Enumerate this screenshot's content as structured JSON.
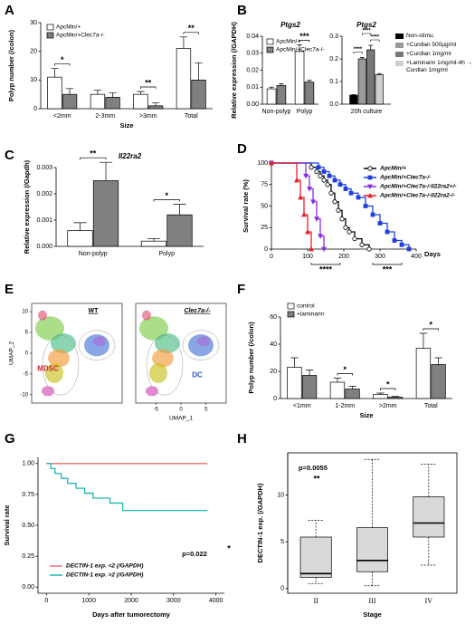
{
  "chart_data": [
    {
      "type": "bar",
      "panel": "A",
      "ylabel": "Polyp number (/colon)",
      "xlabel": "Size",
      "categories": [
        "<2mm",
        "2-3mm",
        ">3mm",
        "Total"
      ],
      "series": [
        {
          "name": "ApcMin/+",
          "color": "#ffffff",
          "values": [
            11,
            5,
            5,
            21
          ],
          "errors": [
            3,
            1.5,
            1,
            4
          ]
        },
        {
          "name": "ApcMin/+Clec7a-/-",
          "color": "#808080",
          "values": [
            5,
            4,
            1,
            10
          ],
          "errors": [
            2,
            1.5,
            1,
            6
          ]
        }
      ],
      "significance": [
        "*",
        null,
        "**",
        "**"
      ],
      "ylim": [
        0,
        30
      ],
      "yticks": [
        0,
        10,
        20,
        30
      ]
    },
    {
      "type": "bar",
      "panel": "B",
      "title": "Ptgs2",
      "ylabel": "Relative expression (/GAPDH)",
      "categories": [
        "Non-polyp",
        "Polyp"
      ],
      "series": [
        {
          "name": "ApcMin/+",
          "color": "#ffffff",
          "values": [
            0.009,
            0.031
          ],
          "errors": [
            0.001,
            0.004
          ]
        },
        {
          "name": "ApcMin/+Clec7a-/-",
          "color": "#808080",
          "values": [
            0.011,
            0.013
          ],
          "errors": [
            0.001,
            0.001
          ]
        }
      ],
      "significance": [
        null,
        "***"
      ],
      "ylim": [
        0,
        0.04
      ],
      "yticks": [
        {
          "value": 0,
          "label": "0.00"
        },
        {
          "value": 0.01,
          "label": "0.01"
        },
        {
          "value": 0.02,
          "label": "0.02"
        },
        {
          "value": 0.03,
          "label": "0.03"
        },
        {
          "value": 0.04,
          "label": "0.04"
        }
      ]
    },
    {
      "type": "bar",
      "title": "Ptgs2",
      "categories": [
        "20h culture"
      ],
      "series": [
        {
          "name": "Non-stimu.",
          "color": "#000000",
          "values": [
            0.04
          ],
          "errors": [
            0.002
          ]
        },
        {
          "name": "+Curdlan 500μg/ml",
          "color": "#9a9a9a",
          "values": [
            0.2
          ],
          "errors": [
            0.006
          ]
        },
        {
          "name": "+Curdlan 1mg/ml",
          "color": "#777777",
          "values": [
            0.24
          ],
          "errors": [
            0.02
          ]
        },
        {
          "name": "+Laminarin 1mg/ml-4h → Curdlan 1mg/ml",
          "color": "#cfcfcf",
          "values": [
            0.13
          ],
          "errors": [
            0.005
          ]
        }
      ],
      "pairwise": [
        "****",
        "****",
        "****"
      ],
      "ylim": [
        0,
        0.3
      ],
      "yticks": [
        {
          "value": 0,
          "label": "0.0"
        },
        {
          "value": 0.1,
          "label": "0.1"
        },
        {
          "value": 0.2,
          "label": "0.2"
        },
        {
          "value": 0.3,
          "label": "0.3"
        }
      ]
    },
    {
      "type": "bar",
      "panel": "C",
      "title": "Il22ra2",
      "ylabel": "Relative expression (/Gapdh)",
      "categories": [
        "Non-polyp",
        "Polyp"
      ],
      "series": [
        {
          "color": "#ffffff",
          "values": [
            0.0006,
            0.0002
          ],
          "errors": [
            0.0003,
            0.0001
          ]
        },
        {
          "color": "#808080",
          "values": [
            0.0025,
            0.0012
          ],
          "errors": [
            0.0007,
            0.0004
          ]
        }
      ],
      "significance": [
        "**",
        "*"
      ],
      "ylim": [
        0,
        0.003
      ],
      "yticks": [
        {
          "value": 0,
          "label": "0.000"
        },
        {
          "value": 0.001,
          "label": "0.001"
        },
        {
          "value": 0.002,
          "label": "0.002"
        },
        {
          "value": 0.003,
          "label": "0.003"
        }
      ]
    },
    {
      "type": "step",
      "panel": "D",
      "ylabel": "Survival rate (%)",
      "xlabel": "Days",
      "series": [
        {
          "name": "ApcMin/+",
          "color": "#000000",
          "marker": "o",
          "x": [
            0,
            110,
            125,
            135,
            145,
            155,
            165,
            175,
            185,
            195,
            205,
            215,
            230,
            250,
            270
          ],
          "values": [
            100,
            95,
            90,
            85,
            80,
            75,
            65,
            55,
            45,
            35,
            25,
            20,
            12,
            5,
            0
          ]
        },
        {
          "name": "ApcMin/+Clec7a-/-",
          "color": "#1f3fdf",
          "marker": "s",
          "x": [
            0,
            130,
            145,
            160,
            175,
            190,
            205,
            220,
            240,
            260,
            280,
            300,
            320,
            340,
            360,
            380
          ],
          "values": [
            100,
            95,
            90,
            85,
            80,
            75,
            70,
            65,
            60,
            50,
            40,
            30,
            20,
            10,
            5,
            0
          ]
        },
        {
          "name": "ApcMin/+Clec7a-/-Il22ra2+/-",
          "color": "#8a2be2",
          "marker": "v",
          "x": [
            0,
            95,
            105,
            115,
            125,
            135,
            145
          ],
          "values": [
            100,
            85,
            70,
            55,
            35,
            15,
            0
          ]
        },
        {
          "name": "ApcMin/+Clec7a-/-Il22ra2-/-",
          "color": "#e8212a",
          "marker": "^",
          "x": [
            0,
            70,
            80,
            90,
            100,
            110
          ],
          "values": [
            100,
            80,
            60,
            40,
            20,
            0
          ]
        }
      ],
      "annotations": [
        "****",
        "***"
      ],
      "xlim": [
        0,
        400
      ],
      "xticks": [
        0,
        100,
        200,
        300,
        400
      ],
      "ylim": [
        0,
        100
      ],
      "yticks": [
        0,
        25,
        50,
        75,
        100
      ]
    },
    {
      "type": "umap",
      "panel": "E",
      "xlabel": "UMAP_1",
      "ylabel": "UMAP_2",
      "titles": [
        "WT",
        "Clec7a-/-"
      ],
      "labels": [
        "MDSC",
        "DC"
      ],
      "xlim": [
        -9,
        9
      ],
      "ylim": [
        -12,
        12
      ],
      "xticks": [
        -5,
        0,
        5
      ],
      "yticks": [
        -10,
        -5,
        0,
        5,
        10
      ]
    },
    {
      "type": "bar",
      "panel": "F",
      "ylabel": "Polyp number (/colon)",
      "xlabel": "Size",
      "categories": [
        "<1mm",
        "1-2mm",
        ">2mm",
        "Total"
      ],
      "series": [
        {
          "name": "control",
          "color": "#ffffff",
          "values": [
            23,
            12,
            3,
            37
          ],
          "errors": [
            7,
            3,
            1,
            11
          ]
        },
        {
          "name": "+laminarin",
          "color": "#808080",
          "values": [
            17,
            7,
            1,
            25
          ],
          "errors": [
            4,
            2,
            0.5,
            5
          ]
        }
      ],
      "significance": [
        null,
        "*",
        "*",
        "*"
      ],
      "ylim": [
        0,
        60
      ],
      "yticks": [
        0,
        20,
        40,
        60
      ]
    },
    {
      "type": "step",
      "panel": "G",
      "ylabel": "Survival rate",
      "xlabel": "Days after tumorectomy",
      "series": [
        {
          "name": "DECTIN-1 exp. <2 (/GAPDH)",
          "color": "#f26b6b",
          "x": [
            0,
            3800
          ],
          "values": [
            1,
            1
          ]
        },
        {
          "name": "DECTIN-1 exp. >2 (/GAPDH)",
          "color": "#1fb5b0",
          "x": [
            0,
            100,
            200,
            350,
            500,
            700,
            900,
            1100,
            1500,
            1800,
            3800
          ],
          "values": [
            1,
            0.96,
            0.92,
            0.88,
            0.84,
            0.8,
            0.76,
            0.72,
            0.68,
            0.62,
            0.62
          ]
        }
      ],
      "annotations": [
        "p=0.022",
        "*"
      ],
      "xlim": [
        -200,
        4200
      ],
      "xticks": [
        0,
        1000,
        2000,
        3000,
        4000
      ],
      "ylim": [
        -0.05,
        1.05
      ],
      "yticks": [
        {
          "value": 0,
          "label": "0.00"
        },
        {
          "value": 0.25,
          "label": "0.25"
        },
        {
          "value": 0.5,
          "label": "0.50"
        },
        {
          "value": 0.75,
          "label": "0.75"
        },
        {
          "value": 1,
          "label": "1.00"
        }
      ]
    },
    {
      "type": "box",
      "panel": "H",
      "ylabel": "DECTIN-1 exp. (/GAPDH)",
      "xlabel": "Stage",
      "categories": [
        "II",
        "III",
        "IV"
      ],
      "boxes": [
        {
          "min": 0.5,
          "q1": 1.2,
          "median": 1.6,
          "q3": 5.5,
          "max": 7.3
        },
        {
          "min": 0.3,
          "q1": 1.8,
          "median": 3,
          "q3": 6.5,
          "max": 13.8
        },
        {
          "min": 2.5,
          "q1": 5.5,
          "median": 7,
          "q3": 9.8,
          "max": 13.3
        }
      ],
      "color": "#d9d9d9",
      "annotations": [
        "p=0.0055",
        "**"
      ],
      "ylim": [
        -0.5,
        14.5
      ],
      "yticks": [
        0,
        5,
        10
      ]
    }
  ]
}
